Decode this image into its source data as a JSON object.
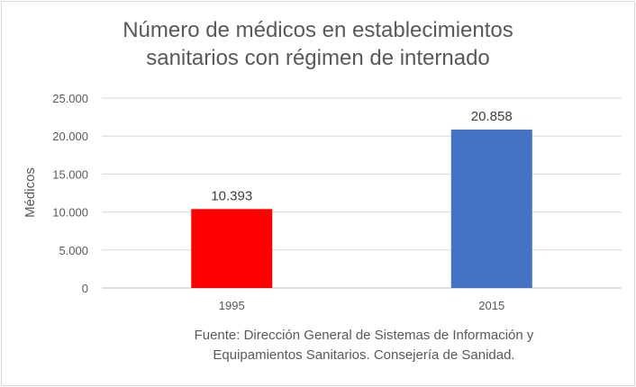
{
  "chart_data": {
    "type": "bar",
    "title_lines": [
      "Número de médicos en establecimientos",
      "sanitarios con régimen de internado"
    ],
    "categories": [
      "1995",
      "2015"
    ],
    "values": [
      10393,
      20858
    ],
    "data_labels": [
      "10.393",
      "20.858"
    ],
    "bar_colors": [
      "#ff0000",
      "#4472c4"
    ],
    "ylabel": "Médicos",
    "xlabel": "",
    "ylim": [
      0,
      25000
    ],
    "yticks": [
      0,
      5000,
      10000,
      15000,
      20000,
      25000
    ],
    "ytick_labels": [
      "0",
      "5.000",
      "10.000",
      "15.000",
      "20.000",
      "25.000"
    ],
    "grid": true,
    "legend": "none"
  },
  "source_lines": [
    "Fuente: Dirección General de Sistemas de Información y",
    "Equipamientos Sanitarios. Consejería de Sanidad."
  ]
}
